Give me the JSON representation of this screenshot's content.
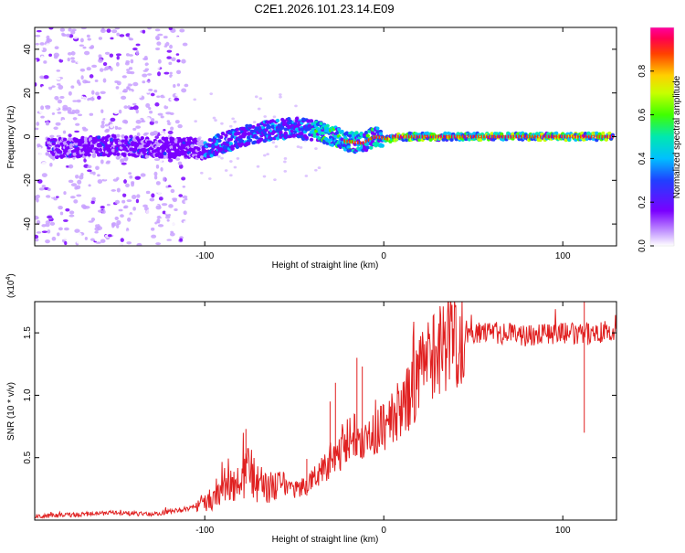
{
  "figure_title": "C2E1.2026.101.23.14.E09",
  "colors": {
    "axis": "#000000",
    "snr_line": "#e02020",
    "background": "#ffffff"
  },
  "chart_data": [
    {
      "type": "heatmap",
      "name": "spectrogram",
      "xlabel": "Height of straight line (km)",
      "ylabel": "Frequency (Hz)",
      "xlim": [
        -195,
        130
      ],
      "ylim": [
        -50,
        50
      ],
      "xticks": [
        -100,
        0,
        100
      ],
      "yticks": [
        -40,
        -20,
        0,
        20,
        40
      ],
      "xtick_labels": [
        "-100",
        "0",
        "100"
      ],
      "ytick_labels": [
        "-40",
        "-20",
        "0",
        "20",
        "40"
      ],
      "colorbar": {
        "label": "Normalized spectral amplitude",
        "range": [
          0,
          1
        ],
        "ticks": [
          0.0,
          0.2,
          0.4,
          0.6,
          0.8
        ],
        "tick_labels": [
          "0.0",
          "0.2",
          "0.4",
          "0.6",
          "0.8"
        ],
        "colormap": "rainbow (white-violet-blue-cyan-green-yellow-red-magenta)"
      },
      "ridge": {
        "description": "dominant frequency vs height",
        "x": [
          -190,
          -170,
          -150,
          -130,
          -110,
          -100,
          -90,
          -80,
          -70,
          -60,
          -50,
          -40,
          -30,
          -22,
          -12,
          -5,
          3,
          10,
          130
        ],
        "y": [
          -5,
          -5,
          -4,
          -5,
          -5,
          -6,
          -3,
          0,
          2,
          3,
          4,
          3,
          1,
          -2,
          -3,
          0,
          -1,
          0,
          0
        ]
      }
    },
    {
      "type": "line",
      "name": "snr",
      "xlabel": "Height of straight line (km)",
      "ylabel": "SNR (10 * v/v)",
      "yscale_label": "(x10",
      "yscale_exponent": "4",
      "xlim": [
        -195,
        130
      ],
      "ylim": [
        0,
        17500
      ],
      "xticks": [
        -100,
        0,
        100
      ],
      "yticks": [
        5000,
        10000,
        15000
      ],
      "xtick_labels": [
        "-100",
        "0",
        "100"
      ],
      "ytick_labels": [
        "0.5",
        "1.0",
        "1.5"
      ],
      "series": [
        {
          "name": "SNR",
          "x": [
            -195,
            -170,
            -150,
            -130,
            -110,
            -100,
            -90,
            -80,
            -75,
            -70,
            -60,
            -50,
            -42,
            -35,
            -30,
            -25,
            -20,
            -15,
            -10,
            -5,
            0,
            5,
            10,
            15,
            20,
            25,
            30,
            35,
            40,
            50,
            60,
            70,
            80,
            90,
            100,
            110,
            120,
            130
          ],
          "y": [
            300,
            450,
            600,
            450,
            900,
            1400,
            2200,
            3000,
            4200,
            2800,
            2600,
            2400,
            2900,
            4000,
            4600,
            5200,
            6500,
            7200,
            6500,
            6700,
            7600,
            8200,
            9000,
            10000,
            11500,
            12800,
            13800,
            14200,
            14600,
            15000,
            15000,
            14900,
            14800,
            15000,
            15000,
            14800,
            15100,
            15000
          ],
          "peaks": [
            {
              "x": -77,
              "y": 7300
            },
            {
              "x": -43,
              "y": 4900
            },
            {
              "x": -30,
              "y": 9500
            },
            {
              "x": -27,
              "y": 11000
            },
            {
              "x": -15,
              "y": 13000
            },
            {
              "x": -12,
              "y": 12300
            },
            {
              "x": 112,
              "y": 17500
            }
          ]
        }
      ]
    }
  ]
}
